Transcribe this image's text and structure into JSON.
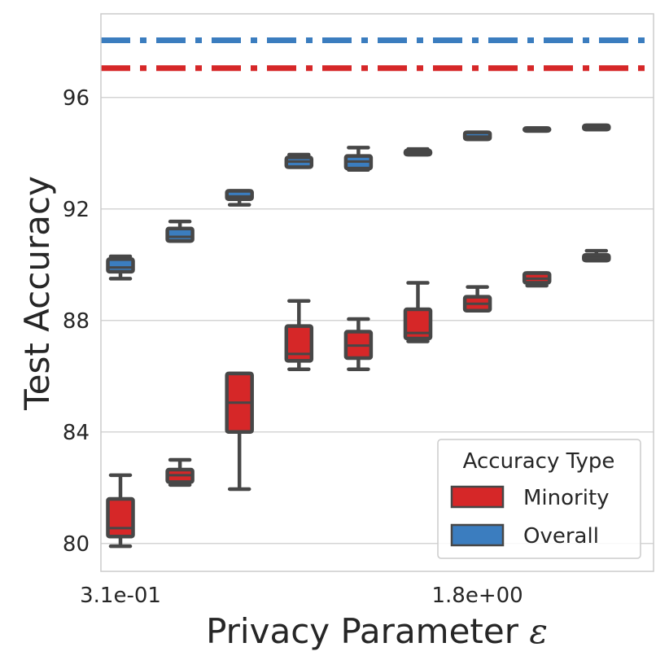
{
  "chart_data": {
    "type": "box",
    "title": "",
    "xlabel": "Privacy Parameter ",
    "xlabel_symbol": "ε",
    "ylabel": "Test Accuracy",
    "ylim": [
      79,
      99
    ],
    "yticks": [
      80,
      84,
      88,
      92,
      96
    ],
    "ytick_labels": [
      "80",
      "84",
      "88",
      "92",
      "96"
    ],
    "xtick_labels": [
      {
        "position": 0,
        "label": "3.1e-01"
      },
      {
        "position": 6,
        "label": "1.8e+00"
      }
    ],
    "grid": true,
    "n_positions": 10,
    "reference_lines": [
      {
        "series": "Overall",
        "value": 98.05,
        "style": "dash-dot"
      },
      {
        "series": "Minority",
        "value": 97.05,
        "style": "dash-dot"
      }
    ],
    "legend": {
      "title": "Accuracy Type",
      "placement": "lower-right",
      "entries": [
        {
          "label": "Minority",
          "color": "#d62728"
        },
        {
          "label": "Overall",
          "color": "#3b7dbf"
        }
      ]
    },
    "colors": {
      "Minority": "#d62728",
      "Overall": "#3b7dbf",
      "outline": "#474747",
      "grid": "#d4d4d4"
    },
    "series": [
      {
        "name": "Minority",
        "boxes": [
          {
            "pos": 0,
            "whislo": 79.9,
            "q1": 80.25,
            "med": 80.55,
            "q3": 81.6,
            "whishi": 82.45
          },
          {
            "pos": 1,
            "whislo": 82.1,
            "q1": 82.2,
            "med": 82.45,
            "q3": 82.65,
            "whishi": 83.0
          },
          {
            "pos": 2,
            "whislo": 81.95,
            "q1": 84.0,
            "med": 85.05,
            "q3": 86.1,
            "whishi": 86.1
          },
          {
            "pos": 3,
            "whislo": 86.25,
            "q1": 86.55,
            "med": 86.8,
            "q3": 87.8,
            "whishi": 88.7
          },
          {
            "pos": 4,
            "whislo": 86.25,
            "q1": 86.65,
            "med": 87.1,
            "q3": 87.6,
            "whishi": 88.05
          },
          {
            "pos": 5,
            "whislo": 87.25,
            "q1": 87.35,
            "med": 87.55,
            "q3": 88.4,
            "whishi": 89.35
          },
          {
            "pos": 6,
            "whislo": 88.35,
            "q1": 88.35,
            "med": 88.6,
            "q3": 88.85,
            "whishi": 89.2
          },
          {
            "pos": 7,
            "whislo": 89.25,
            "q1": 89.35,
            "med": 89.5,
            "q3": 89.7,
            "whishi": 89.7
          },
          {
            "pos": 8,
            "whislo": 90.15,
            "q1": 90.15,
            "med": 90.25,
            "q3": 90.35,
            "whishi": 90.5
          }
        ]
      },
      {
        "name": "Overall",
        "boxes": [
          {
            "pos": 0,
            "whislo": 89.5,
            "q1": 89.75,
            "med": 89.9,
            "q3": 90.2,
            "whishi": 90.3
          },
          {
            "pos": 1,
            "whislo": 90.85,
            "q1": 90.85,
            "med": 91.0,
            "q3": 91.3,
            "whishi": 91.55
          },
          {
            "pos": 2,
            "whislo": 92.15,
            "q1": 92.35,
            "med": 92.45,
            "q3": 92.65,
            "whishi": 92.65
          },
          {
            "pos": 3,
            "whislo": 93.5,
            "q1": 93.5,
            "med": 93.7,
            "q3": 93.85,
            "whishi": 93.95
          },
          {
            "pos": 4,
            "whislo": 93.4,
            "q1": 93.45,
            "med": 93.7,
            "q3": 93.9,
            "whishi": 94.2
          },
          {
            "pos": 5,
            "whislo": 93.95,
            "q1": 93.95,
            "med": 94.05,
            "q3": 94.1,
            "whishi": 94.15
          },
          {
            "pos": 6,
            "whislo": 94.5,
            "q1": 94.5,
            "med": 94.6,
            "q3": 94.75,
            "whishi": 94.75
          },
          {
            "pos": 7,
            "whislo": 94.8,
            "q1": 94.8,
            "med": 94.85,
            "q3": 94.9,
            "whishi": 94.9
          },
          {
            "pos": 8,
            "whislo": 94.85,
            "q1": 94.85,
            "med": 94.95,
            "q3": 95.0,
            "whishi": 95.0
          }
        ]
      }
    ]
  }
}
